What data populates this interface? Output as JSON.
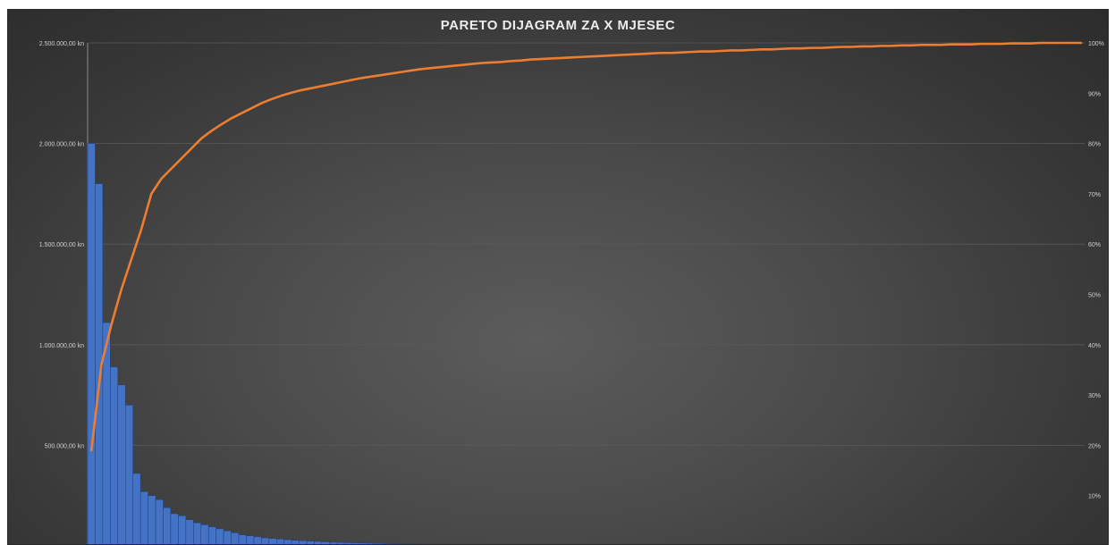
{
  "chart_data": {
    "type": "bar",
    "title": "PARETO DIJAGRAM ZA X MJESEC",
    "xlabel": "",
    "ylabel": "",
    "y_left": {
      "ylim": [
        0,
        2500000
      ],
      "tick_labels": [
        "500.000,00 kn",
        "1.000.000,00 kn",
        "1.500.000,00 kn",
        "2.000.000,00 kn",
        "2.500.000,00 kn"
      ],
      "tick_values": [
        500000,
        1000000,
        1500000,
        2000000,
        2500000
      ]
    },
    "y_right": {
      "ylim": [
        0,
        100
      ],
      "tick_labels": [
        "10%",
        "20%",
        "30%",
        "40%",
        "50%",
        "60%",
        "70%",
        "80%",
        "90%",
        "100%"
      ],
      "tick_values": [
        10,
        20,
        30,
        40,
        50,
        60,
        70,
        80,
        90,
        100
      ]
    },
    "grid": true,
    "legend": "none",
    "colors": {
      "bars": "#4472C4",
      "line": "#ED7D31"
    },
    "series": [
      {
        "type": "bar",
        "axis": "left",
        "values": [
          2000000,
          1800000,
          1110000,
          890000,
          800000,
          700000,
          360000,
          270000,
          250000,
          230000,
          190000,
          160000,
          150000,
          130000,
          115000,
          105000,
          95000,
          85000,
          75000,
          65000,
          55000,
          50000,
          45000,
          40000,
          37000,
          34000,
          31000,
          28000,
          26000,
          24000,
          22000,
          20000,
          18000,
          17000,
          16000,
          15000,
          14000,
          13000,
          12000,
          11000,
          10000,
          10000,
          9000,
          9000,
          8000,
          8000,
          7000,
          7000,
          6000,
          6000,
          5000,
          5000,
          5000,
          4000,
          4000,
          4000,
          4000,
          3000,
          3000,
          3000,
          3000,
          2000,
          2000,
          2000,
          2000,
          2000,
          1000,
          1000,
          1000,
          1000,
          1000,
          1000,
          1000,
          1000,
          1000,
          1000,
          500,
          500,
          500,
          500,
          500,
          500,
          500,
          500,
          500,
          500,
          500,
          500,
          500,
          500,
          500,
          500,
          500,
          500,
          500,
          500,
          500,
          500,
          500,
          500
        ]
      },
      {
        "type": "line",
        "axis": "right",
        "values": [
          19,
          36,
          44,
          51,
          57,
          63,
          70,
          73,
          75,
          77,
          79,
          81,
          82.5,
          83.8,
          85,
          86,
          87,
          88,
          88.8,
          89.5,
          90.1,
          90.6,
          91,
          91.4,
          91.8,
          92.2,
          92.6,
          93,
          93.3,
          93.6,
          93.9,
          94.2,
          94.5,
          94.8,
          95,
          95.2,
          95.4,
          95.6,
          95.8,
          96,
          96.1,
          96.2,
          96.4,
          96.5,
          96.7,
          96.8,
          96.9,
          97,
          97.1,
          97.2,
          97.3,
          97.4,
          97.5,
          97.6,
          97.7,
          97.8,
          97.9,
          98,
          98,
          98.1,
          98.2,
          98.3,
          98.3,
          98.4,
          98.5,
          98.5,
          98.6,
          98.7,
          98.7,
          98.8,
          98.9,
          98.9,
          99,
          99,
          99.1,
          99.2,
          99.2,
          99.3,
          99.3,
          99.4,
          99.4,
          99.5,
          99.5,
          99.6,
          99.6,
          99.6,
          99.7,
          99.7,
          99.7,
          99.8,
          99.8,
          99.8,
          99.9,
          99.9,
          99.9,
          100,
          100,
          100,
          100,
          100
        ]
      }
    ]
  }
}
